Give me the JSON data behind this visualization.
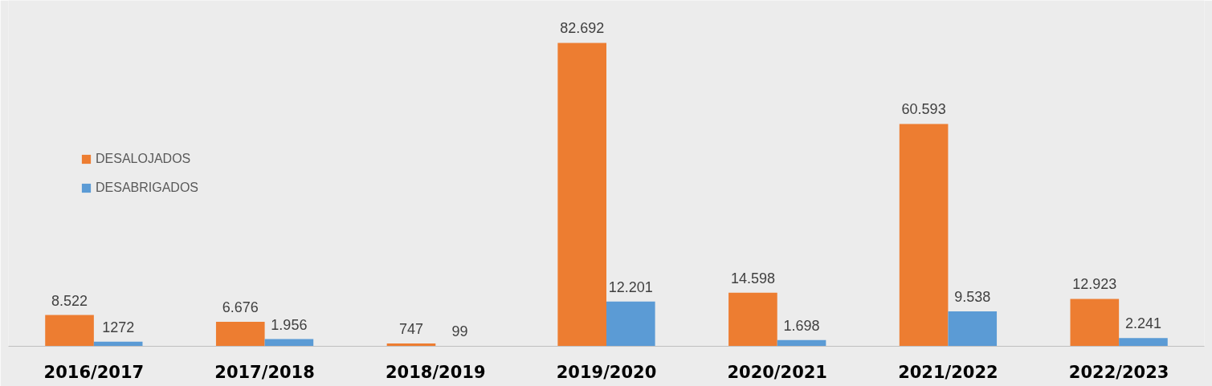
{
  "chart_data": {
    "type": "bar",
    "categories": [
      "2016/2017",
      "2017/2018",
      "2018/2019",
      "2019/2020",
      "2020/2021",
      "2021/2022",
      "2022/2023"
    ],
    "series": [
      {
        "name": "DESALOJADOS",
        "color": "#ed7d31",
        "values": [
          8522,
          6676,
          747,
          82692,
          14598,
          60593,
          12923
        ],
        "value_labels": [
          "8.522",
          "6.676",
          "747",
          "82.692",
          "14.598",
          "60.593",
          "12.923"
        ]
      },
      {
        "name": "DESABRIGADOS",
        "color": "#5b9bd5",
        "values": [
          1272,
          1956,
          99,
          12201,
          1698,
          9538,
          2241
        ],
        "value_labels": [
          "1272",
          "1.956",
          "99",
          "12.201",
          "1.698",
          "9.538",
          "2.241"
        ]
      }
    ],
    "legend": "left",
    "grid": false
  }
}
